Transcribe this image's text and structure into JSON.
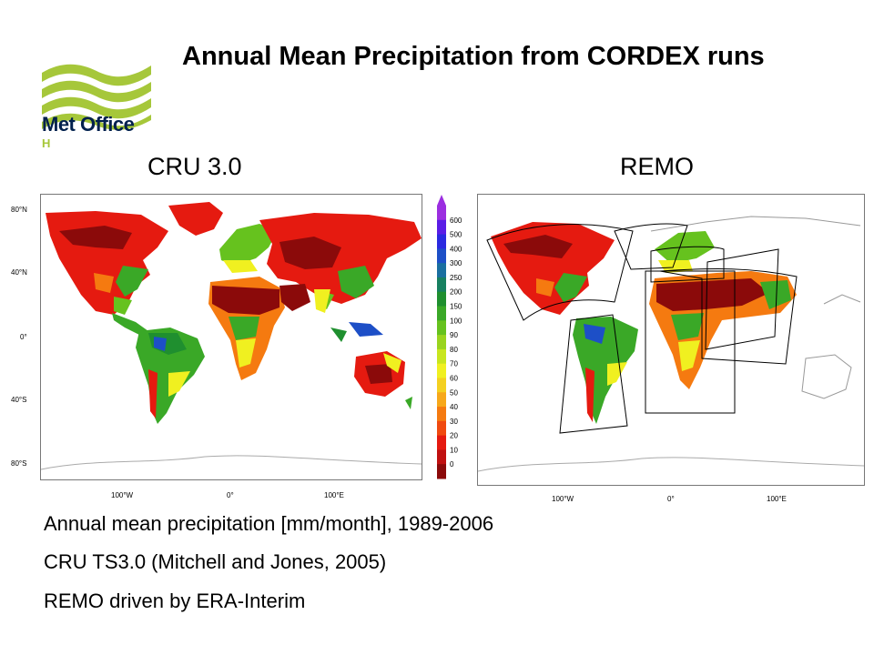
{
  "slide_title": "Annual Mean Precipitation from CORDEX runs",
  "logo": {
    "name": "Met Office",
    "sub": "H"
  },
  "panels": {
    "left_title": "CRU 3.0",
    "right_title": "REMO"
  },
  "axes": {
    "lat_labels": [
      "80°N",
      "40°N",
      "0°",
      "40°S",
      "80°S"
    ],
    "lon_labels": [
      "100°W",
      "0°",
      "100°E"
    ]
  },
  "colorbar": {
    "labels": [
      "600",
      "500",
      "400",
      "300",
      "250",
      "200",
      "150",
      "100",
      "90",
      "80",
      "70",
      "60",
      "50",
      "40",
      "30",
      "20",
      "10",
      "0"
    ],
    "colors": [
      "#8b0a0a",
      "#c01010",
      "#e51a10",
      "#f04a10",
      "#f57a10",
      "#f7a81a",
      "#f4d020",
      "#f0f020",
      "#c8e61e",
      "#9ad41e",
      "#66c21e",
      "#3aa827",
      "#1f8f2f",
      "#178060",
      "#1a6fa0",
      "#1d4fc7",
      "#2a2ae0",
      "#5a1de6",
      "#9b2ee0"
    ]
  },
  "captions": {
    "line1": "Annual mean precipitation [mm/month], 1989-2006",
    "line2": "CRU TS3.0 (Mitchell and Jones, 2005)",
    "line3": "REMO driven by ERA-Interim"
  },
  "colors": {
    "dry": "#8b0a0a",
    "red": "#e51a10",
    "orange": "#f57a10",
    "yellow": "#f0f020",
    "green": "#3aa827",
    "blue": "#1d4fc7",
    "logo_green": "#a6c73a",
    "logo_navy": "#00204d"
  }
}
